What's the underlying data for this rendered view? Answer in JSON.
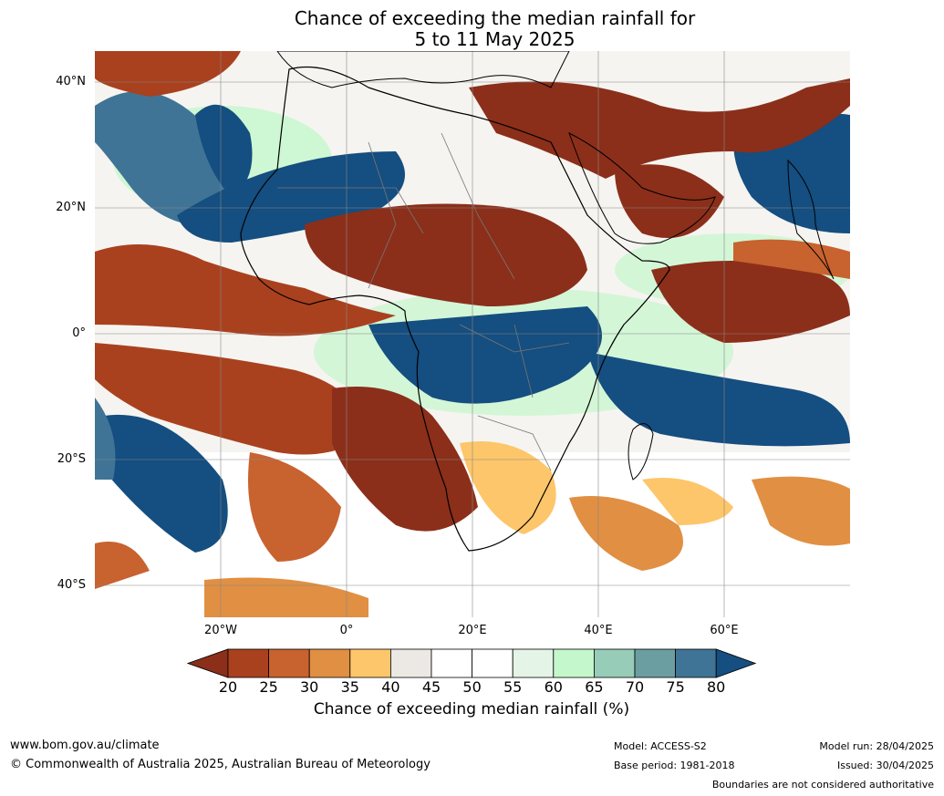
{
  "title": {
    "line1": "Chance of exceeding the median rainfall for",
    "line2": "5 to 11 May 2025"
  },
  "axes": {
    "lat_labels": [
      "40°N",
      "20°N",
      "0°",
      "20°S",
      "40°S"
    ],
    "lon_labels": [
      "20°W",
      "0°",
      "20°E",
      "40°E",
      "60°E"
    ]
  },
  "colorbar": {
    "ticks": [
      "20",
      "25",
      "30",
      "35",
      "40",
      "45",
      "50",
      "55",
      "60",
      "65",
      "70",
      "75",
      "80"
    ],
    "colors": [
      "#8b2f1a",
      "#a9411f",
      "#c8622f",
      "#e08f43",
      "#fdc66a",
      "#ece9e4",
      "#ffffff",
      "#ffffff",
      "#e4f4e6",
      "#c4f7cc",
      "#97ccb8",
      "#6b9ea0",
      "#3f7496",
      "#154e80"
    ],
    "label": "Chance of exceeding median rainfall (%)"
  },
  "footer": {
    "url": "www.bom.gov.au/climate",
    "copyright": "© Commonwealth of Australia 2025, Australian Bureau of Meteorology",
    "model": "Model: ACCESS-S2",
    "base_period": "Base period: 1981-2018",
    "model_run": "Model run: 28/04/2025",
    "issued": "Issued: 30/04/2025",
    "disclaimer": "Boundaries are not considered authoritative"
  }
}
